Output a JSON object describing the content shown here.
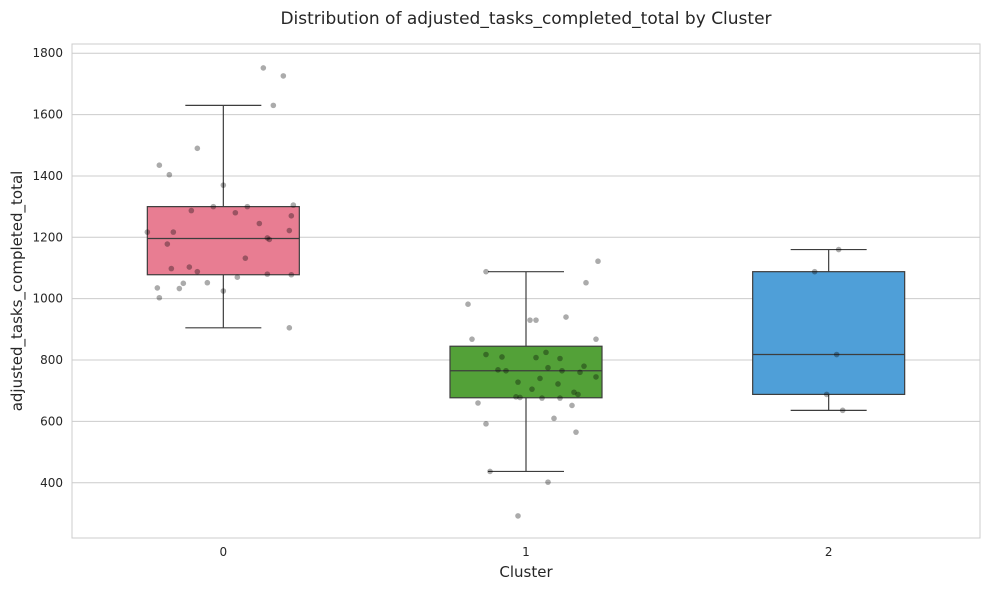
{
  "chart_data": {
    "type": "box",
    "title": "Distribution of adjusted_tasks_completed_total by Cluster",
    "xlabel": "Cluster",
    "ylabel": "adjusted_tasks_completed_total",
    "categories": [
      "0",
      "1",
      "2"
    ],
    "ylim": [
      220,
      1830
    ],
    "yticks": [
      400,
      600,
      800,
      1000,
      1200,
      1400,
      1600,
      1800
    ],
    "grid": true,
    "boxes": [
      {
        "category": "0",
        "color": "#e87d92",
        "whisker_low": 905,
        "q1": 1078,
        "median": 1196,
        "q3": 1300,
        "whisker_high": 1630
      },
      {
        "category": "1",
        "color": "#53a138",
        "whisker_low": 437,
        "q1": 677,
        "median": 765,
        "q3": 845,
        "whisker_high": 1088
      },
      {
        "category": "2",
        "color": "#4f9fd8",
        "whisker_low": 636,
        "q1": 688,
        "median": 818,
        "q3": 1088,
        "whisker_high": 1160
      }
    ],
    "points": [
      {
        "category": "0",
        "jitter": [
          0.2,
          0.3,
          -0.13,
          -0.32,
          0.25,
          -0.27,
          0.0,
          0.35,
          0.34,
          0.12,
          -0.05,
          -0.16,
          0.06,
          0.18,
          0.33,
          -0.38,
          -0.25,
          0.22,
          0.23,
          -0.28,
          0.11,
          -0.17,
          -0.26,
          -0.13,
          0.22,
          0.07,
          0.34,
          -0.08,
          -0.2,
          -0.33,
          0.0,
          -0.32,
          -0.22,
          0.33
        ],
        "values": [
          1752,
          1726,
          1490,
          1435,
          1630,
          1404,
          1370,
          1305,
          1270,
          1300,
          1300,
          1287,
          1280,
          1245,
          1222,
          1217,
          1217,
          1198,
          1193,
          1178,
          1132,
          1103,
          1098,
          1088,
          1080,
          1070,
          1078,
          1052,
          1050,
          1035,
          1025,
          1003,
          1033,
          905
        ]
      },
      {
        "category": "1",
        "jitter": [
          0.36,
          -0.2,
          0.3,
          -0.29,
          0.05,
          0.2,
          0.35,
          -0.27,
          -0.2,
          -0.12,
          0.1,
          0.05,
          0.17,
          0.11,
          0.29,
          -0.14,
          -0.1,
          0.18,
          0.27,
          0.35,
          0.07,
          -0.04,
          0.16,
          0.03,
          0.24,
          0.26,
          -0.05,
          -0.03,
          0.08,
          -0.24,
          0.23,
          0.14,
          -0.2,
          0.25,
          -0.18,
          0.11,
          -0.04,
          0.17,
          0.02
        ],
        "values": [
          1122,
          1088,
          1052,
          982,
          930,
          940,
          868,
          868,
          818,
          810,
          825,
          808,
          805,
          775,
          780,
          768,
          765,
          765,
          760,
          745,
          740,
          728,
          722,
          705,
          695,
          688,
          680,
          678,
          676,
          660,
          652,
          610,
          592,
          565,
          437,
          402,
          292,
          676,
          930
        ]
      },
      {
        "category": "2",
        "jitter": [
          0.05,
          -0.07,
          0.04,
          -0.01,
          0.07
        ],
        "values": [
          1160,
          1088,
          818,
          688,
          636
        ]
      }
    ]
  }
}
